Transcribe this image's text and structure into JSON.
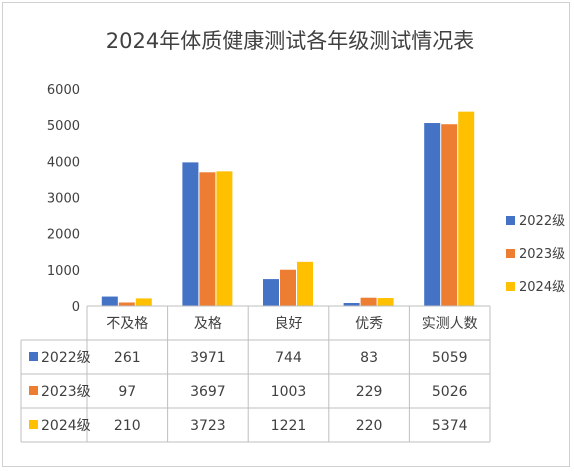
{
  "chart_data": {
    "type": "bar",
    "title": "2024年体质健康测试各年级测试情况表",
    "categories": [
      "不及格",
      "及格",
      "良好",
      "优秀",
      "实测人数"
    ],
    "series": [
      {
        "name": "2022级",
        "color": "#4472c4",
        "values": [
          261,
          3971,
          744,
          83,
          5059
        ]
      },
      {
        "name": "2023级",
        "color": "#ed7d31",
        "values": [
          97,
          3697,
          1003,
          229,
          5026
        ]
      },
      {
        "name": "2024级",
        "color": "#ffc000",
        "values": [
          210,
          3723,
          1221,
          220,
          5374
        ]
      }
    ],
    "ylim": [
      0,
      6000
    ],
    "yticks": [
      0,
      1000,
      2000,
      3000,
      4000,
      5000,
      6000
    ],
    "grid": false,
    "legend": "right",
    "data_table": true
  }
}
